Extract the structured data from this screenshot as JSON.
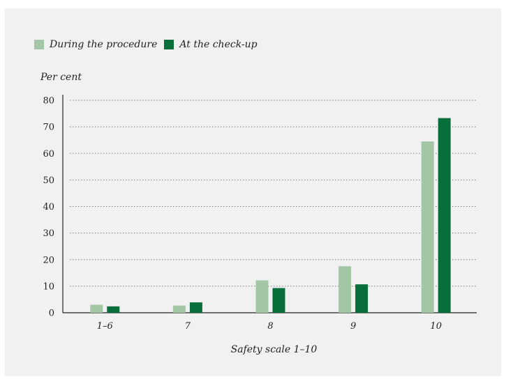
{
  "chart_data": {
    "type": "bar",
    "ylabel": "Per cent",
    "xlabel": "Safety scale 1–10",
    "categories": [
      "1–6",
      "7",
      "8",
      "9",
      "10"
    ],
    "series": [
      {
        "name": "During the procedure",
        "color": "#a3c6a5",
        "values": [
          3,
          2.7,
          12.2,
          17.5,
          64.5
        ]
      },
      {
        "name": "At the check-up",
        "color": "#086f3b",
        "values": [
          2.4,
          3.9,
          9.3,
          10.7,
          73.3
        ]
      }
    ],
    "ylim": [
      0,
      80
    ],
    "yticks": [
      0,
      10,
      20,
      30,
      40,
      50,
      60,
      70,
      80
    ],
    "grid": true,
    "grid_style": "dotted",
    "legend_position": "top-left"
  }
}
